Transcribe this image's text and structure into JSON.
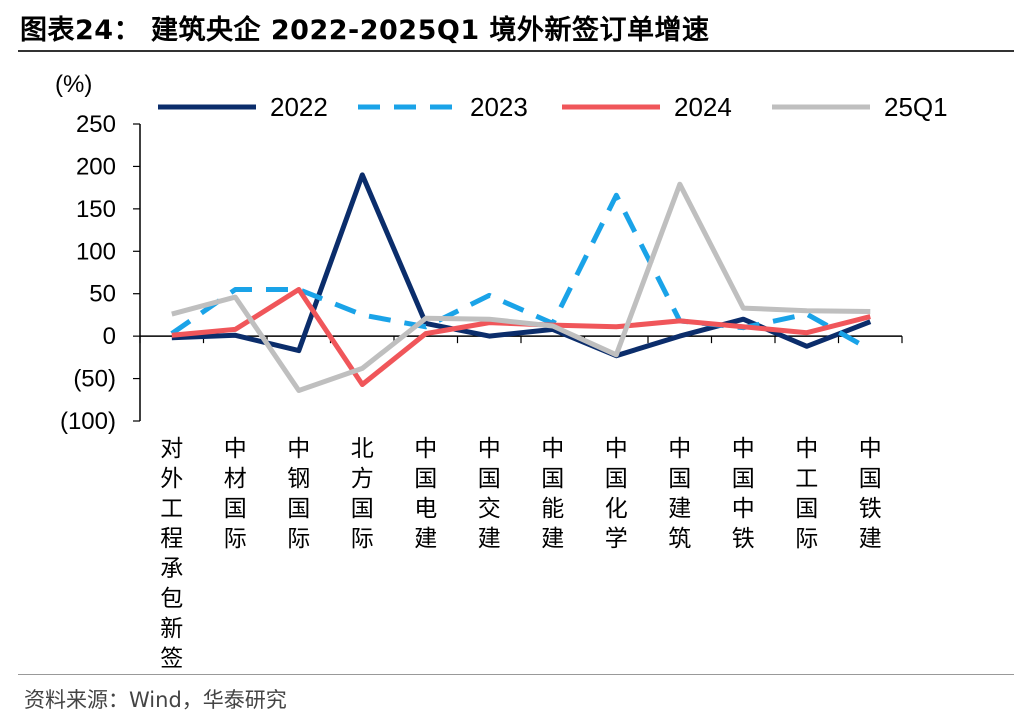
{
  "header": {
    "title": "图表24：  建筑央企 2022-2025Q1 境外新签订单增速"
  },
  "footer": {
    "source": "资料来源：Wind，华泰研究"
  },
  "chart_data": {
    "type": "line",
    "title": "建筑央企 2022-2025Q1 境外新签订单增速",
    "ylabel": "(%)",
    "ylim": [
      -100,
      250
    ],
    "yticks": [
      250,
      200,
      150,
      100,
      50,
      0,
      -50,
      -100
    ],
    "ytick_labels": [
      "250",
      "200",
      "150",
      "100",
      "50",
      "0",
      "(50)",
      "(100)"
    ],
    "legend_position": "top",
    "categories": [
      "对外工程承包新签",
      "中材国际",
      "中钢国际",
      "北方国际",
      "中国电建",
      "中国交建",
      "中国能建",
      "中国化学",
      "中国建筑",
      "中国中铁",
      "中工国际",
      "中国铁建"
    ],
    "series": [
      {
        "name": "2022",
        "color": "#0b2d6b",
        "dash": "solid",
        "values": [
          -2,
          1,
          -17,
          190,
          15,
          0,
          8,
          -23,
          0,
          20,
          -12,
          17
        ]
      },
      {
        "name": "2023",
        "color": "#1aa3e8",
        "dash": "dashed",
        "values": [
          3,
          55,
          55,
          25,
          11,
          48,
          15,
          166,
          18,
          10,
          26,
          -16
        ]
      },
      {
        "name": "2024",
        "color": "#f0565a",
        "dash": "solid",
        "values": [
          1,
          8,
          55,
          -57,
          3,
          16,
          13,
          11,
          18,
          11,
          4,
          23
        ]
      },
      {
        "name": "25Q1",
        "color": "#bfbfbf",
        "dash": "solid",
        "values": [
          26,
          46,
          -64,
          -38,
          21,
          20,
          12,
          -22,
          179,
          33,
          30,
          29
        ]
      }
    ]
  }
}
